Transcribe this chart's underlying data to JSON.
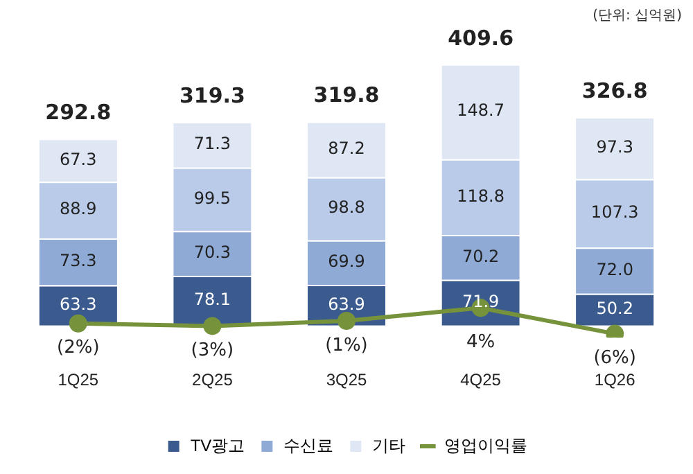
{
  "chart_data": {
    "type": "bar",
    "stacked": true,
    "categories": [
      "1Q25",
      "2Q25",
      "3Q25",
      "4Q25",
      "1Q26"
    ],
    "series": [
      {
        "name": "TV광고",
        "color": "#3b5b8f",
        "values": [
          63.3,
          78.1,
          63.9,
          71.9,
          50.2
        ],
        "value_labels": [
          "63.3",
          "78.1",
          "63.9",
          "71.9",
          "50.2"
        ]
      },
      {
        "name": "수신료",
        "color": "#8eaad5",
        "values": [
          73.3,
          70.3,
          69.9,
          70.2,
          72.0
        ],
        "value_labels": [
          "73.3",
          "70.3",
          "69.9",
          "70.2",
          "72.0"
        ]
      },
      {
        "color": "#b9cbe8",
        "values": [
          88.9,
          99.5,
          98.8,
          118.8,
          107.3
        ],
        "value_labels": [
          "88.9",
          "99.5",
          "98.8",
          "118.8",
          "107.3"
        ]
      },
      {
        "name": "기타",
        "color": "#dfe7f4",
        "values": [
          67.3,
          71.3,
          87.2,
          148.7,
          97.3
        ],
        "value_labels": [
          "67.3",
          "71.3",
          "87.2",
          "148.7",
          "97.3"
        ]
      },
      {
        "name": "영업이익률",
        "type": "line",
        "axis": "y2",
        "color": "#76933c",
        "marker": "circle",
        "values": [
          -2,
          -3,
          -1,
          4,
          -6
        ],
        "value_labels": [
          "(2%)",
          "(3%)",
          "(1%)",
          "4%",
          "(6%)"
        ]
      }
    ],
    "totals": [
      "292.8",
      "319.3",
      "319.8",
      "409.6",
      "326.8"
    ],
    "tick_labels": "x",
    "grid": false,
    "legend": "bottom",
    "annotations": [
      "(단위: 십억원)"
    ]
  }
}
